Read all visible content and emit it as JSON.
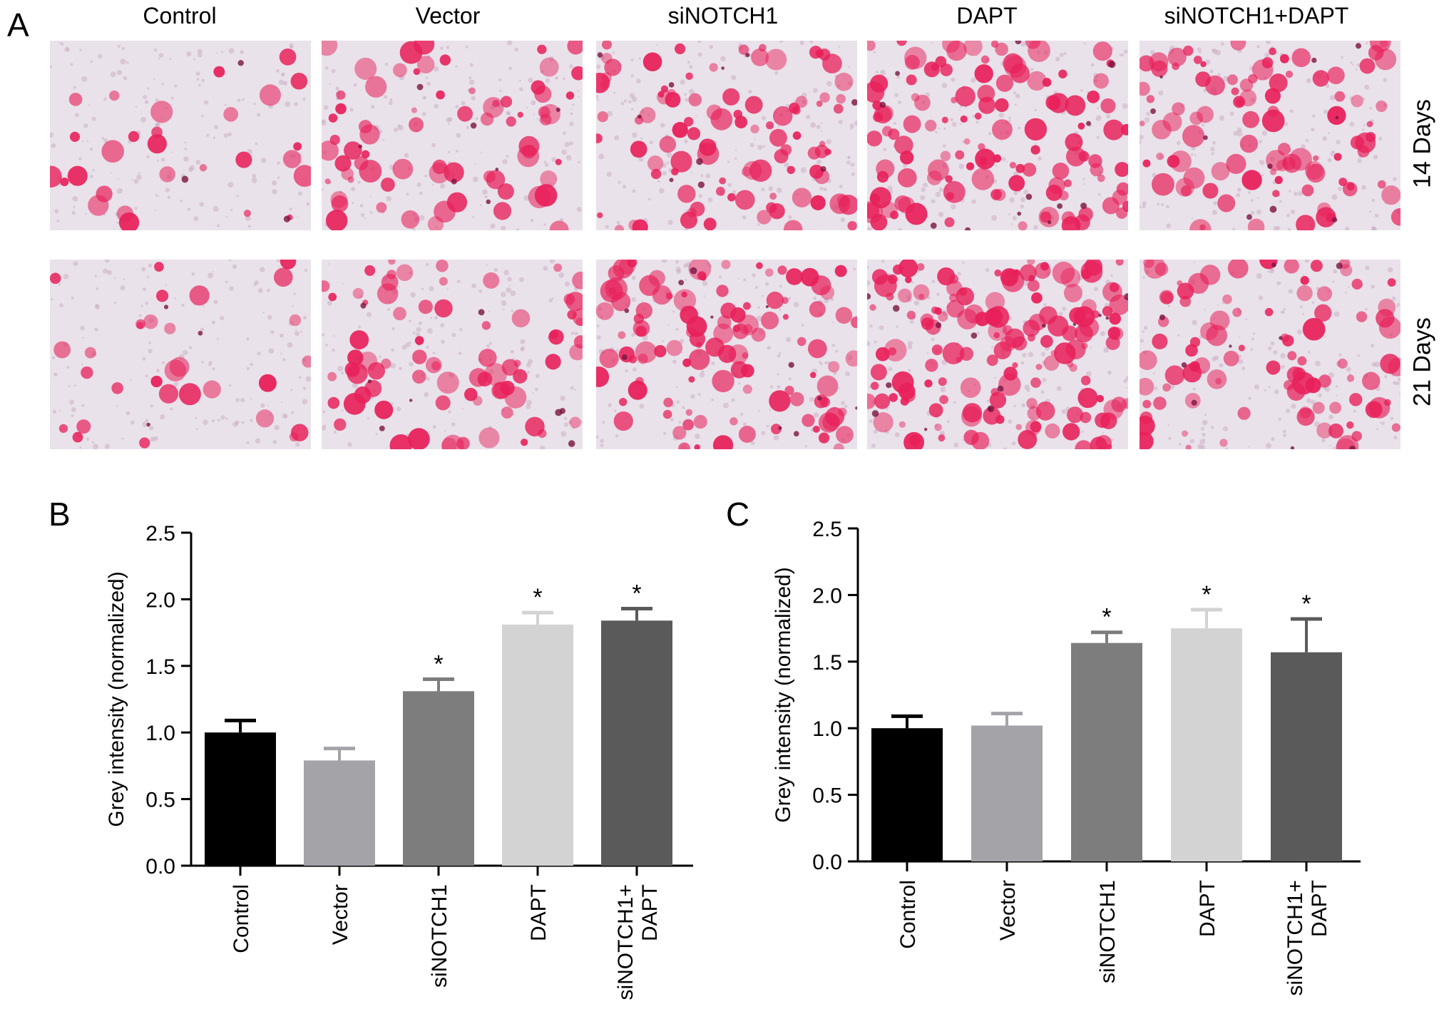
{
  "panel_a": {
    "letter": "A",
    "columns": [
      "Control",
      "Vector",
      "siNOTCH1",
      "DAPT",
      "siNOTCH1+DAPT"
    ],
    "rows": [
      "14 Days",
      "21 Days"
    ],
    "stain_color": "#e8205a",
    "background_color": "#e9e2ea"
  },
  "chart_data": [
    {
      "type": "bar",
      "panel": "B",
      "categories": [
        "Control",
        "Vector",
        "siNOTCH1",
        "DAPT",
        "siNOTCH1+\nDAPT"
      ],
      "values": [
        1.0,
        0.79,
        1.31,
        1.81,
        1.84
      ],
      "errors": [
        0.09,
        0.09,
        0.09,
        0.09,
        0.09
      ],
      "significance": [
        "",
        "",
        "*",
        "*",
        "*"
      ],
      "colors": [
        "#000000",
        "#a3a3a8",
        "#7d7d7d",
        "#d3d3d3",
        "#5a5a5a"
      ],
      "ylabel": "Grey intensity (normalized)",
      "ylim": [
        0,
        2.5
      ],
      "yticks": [
        0.0,
        0.5,
        1.0,
        1.5,
        2.0,
        2.5
      ]
    },
    {
      "type": "bar",
      "panel": "C",
      "categories": [
        "Control",
        "Vector",
        "siNOTCH1",
        "DAPT",
        "siNOTCH1+\nDAPT"
      ],
      "values": [
        1.0,
        1.02,
        1.64,
        1.75,
        1.57
      ],
      "errors": [
        0.09,
        0.09,
        0.08,
        0.14,
        0.25
      ],
      "significance": [
        "",
        "",
        "*",
        "*",
        "*"
      ],
      "colors": [
        "#000000",
        "#a3a3a8",
        "#7d7d7d",
        "#d3d3d3",
        "#5a5a5a"
      ],
      "ylabel": "Grey intensity (normalized)",
      "ylim": [
        0,
        2.5
      ],
      "yticks": [
        0.0,
        0.5,
        1.0,
        1.5,
        2.0,
        2.5
      ]
    }
  ]
}
